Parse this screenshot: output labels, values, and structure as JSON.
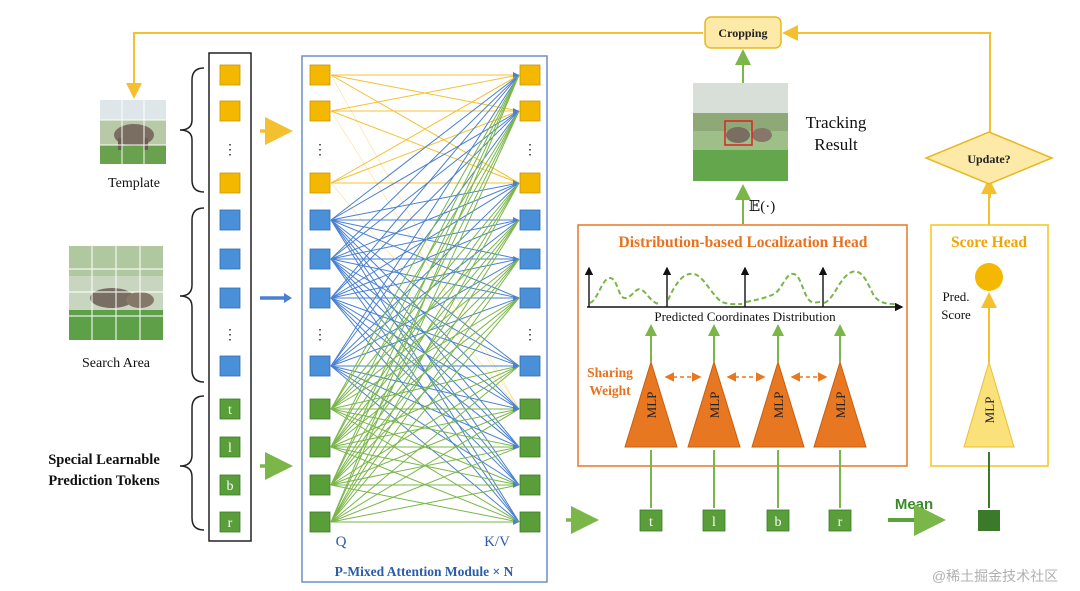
{
  "colors": {
    "yellow_token": "#f5b800",
    "blue_token": "#4a90d9",
    "green_token": "#5a9e3a",
    "dark_green_token": "#3a7a2a",
    "orange_head": "#e87722",
    "orange_text": "#e8711e",
    "yellow_head_border": "#f5c518",
    "score_text": "#f0a500",
    "attn_border": "#6b8fc7",
    "attn_text": "#2a5caa",
    "line_yellow": "#f5c030",
    "line_blue": "#4a80d0",
    "line_green": "#7ab648"
  },
  "labels": {
    "template": "Template",
    "search_area": "Search Area",
    "special_tokens_line1": "Special Learnable",
    "special_tokens_line2": "Prediction Tokens",
    "q": "Q",
    "kv": "K/V",
    "attn_module": "P-Mixed Attention Module × N",
    "cropping": "Cropping",
    "tracking_line1": "Tracking",
    "tracking_line2": "Result",
    "expectation": "𝔼(·)",
    "dlh_title": "Distribution-based Localization Head",
    "pred_coord": "Predicted Coordinates Distribution",
    "sharing_line1": "Sharing",
    "sharing_line2": "Weight",
    "mlp": "MLP",
    "score_head": "Score Head",
    "pred_score_line1": "Pred.",
    "pred_score_line2": "Score",
    "update": "Update?",
    "mean": "Mean",
    "dots": "⋮",
    "watermark": "@稀土掘金技术社区"
  },
  "tokens": [
    "t",
    "l",
    "b",
    "r"
  ],
  "output_tokens": [
    "t",
    "l",
    "b",
    "r"
  ],
  "icons": {
    "template_image": "elephant-template-image",
    "search_image": "elephant-search-image",
    "tracking_image": "elephant-tracking-image"
  }
}
